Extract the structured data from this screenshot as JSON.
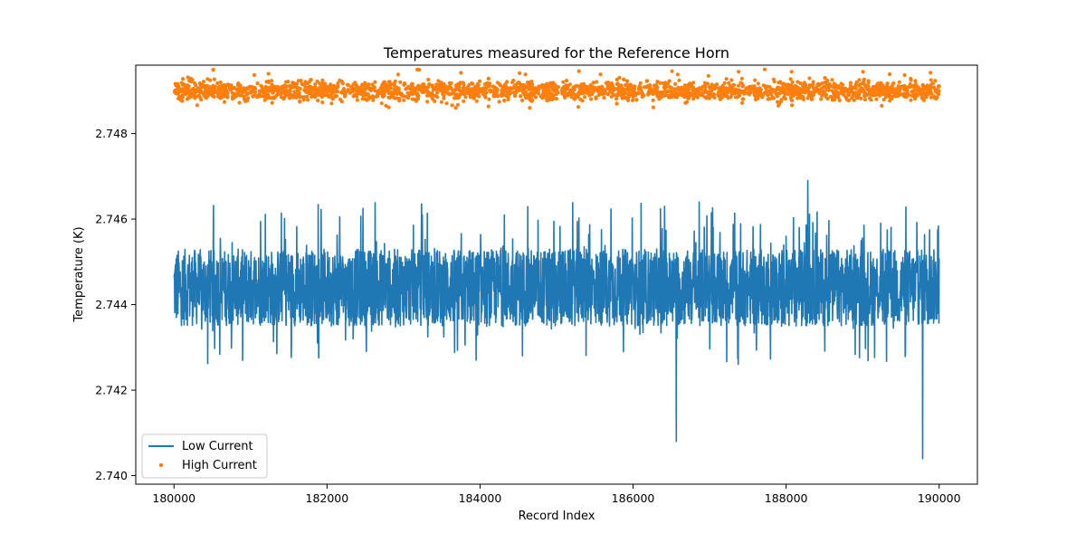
{
  "chart_data": {
    "type": "line",
    "title": "Temperatures measured for the Reference Horn",
    "xlabel": "Record Index",
    "ylabel": "Temperature (K)",
    "xlim": [
      179500,
      190500
    ],
    "ylim": [
      2.7398,
      2.7496
    ],
    "xticks": [
      180000,
      182000,
      184000,
      186000,
      188000,
      190000
    ],
    "yticks": [
      2.74,
      2.742,
      2.744,
      2.746,
      2.748
    ],
    "ytick_labels": [
      "2.740",
      "2.742",
      "2.744",
      "2.746",
      "2.748"
    ],
    "legend_position": "lower-left",
    "series": [
      {
        "name": "Low Current",
        "style": "line",
        "color": "#1f77b4",
        "x_range": [
          180000,
          190000
        ],
        "band": [
          2.7435,
          2.7453
        ],
        "center": 2.7444,
        "min": 2.7404,
        "max": 2.7469
      },
      {
        "name": "High Current",
        "style": "scatter",
        "color": "#ff7f0e",
        "x_range": [
          180000,
          190000
        ],
        "band": [
          2.7488,
          2.7492
        ],
        "center": 2.749,
        "min": 2.7486,
        "max": 2.7495
      }
    ]
  }
}
